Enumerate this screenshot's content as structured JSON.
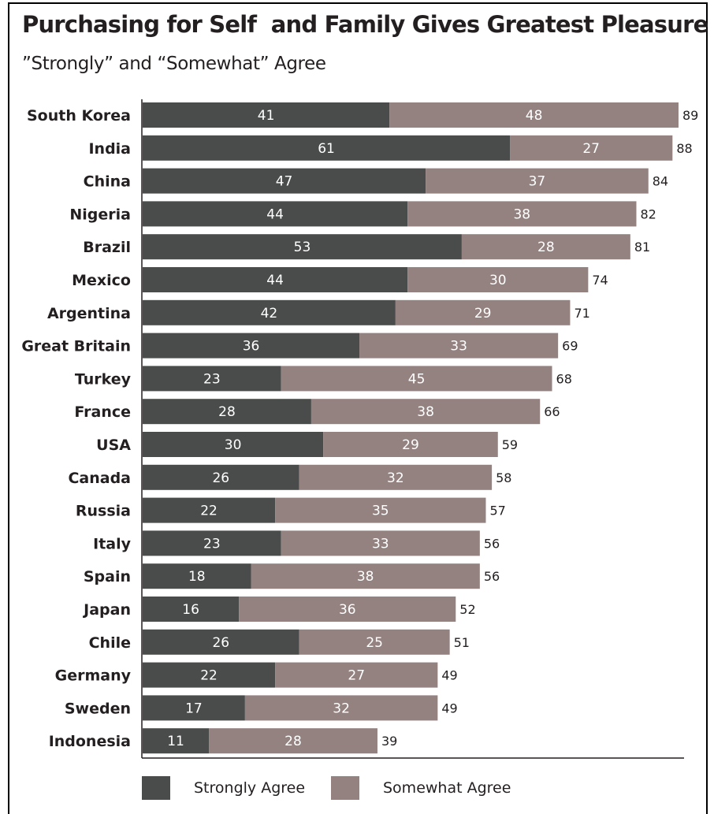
{
  "chart_data": {
    "type": "bar",
    "orientation": "horizontal",
    "stacked": true,
    "title": "Purchasing for Self  and Family Gives Greatest Pleasure",
    "subtitle": "”Strongly” and “Somewhat” Agree",
    "categories": [
      "South Korea",
      "India",
      "China",
      "Nigeria",
      "Brazil",
      "Mexico",
      "Argentina",
      "Great Britain",
      "Turkey",
      "France",
      "USA",
      "Canada",
      "Russia",
      "Italy",
      "Spain",
      "Japan",
      "Chile",
      "Germany",
      "Sweden",
      "Indonesia"
    ],
    "series": [
      {
        "name": "Strongly Agree",
        "color": "#4a4c4b",
        "values": [
          41,
          61,
          47,
          44,
          53,
          44,
          42,
          36,
          23,
          28,
          30,
          26,
          22,
          23,
          18,
          16,
          26,
          22,
          17,
          11
        ]
      },
      {
        "name": "Somewhat Agree",
        "color": "#948280",
        "values": [
          48,
          27,
          37,
          38,
          28,
          30,
          29,
          33,
          45,
          38,
          29,
          32,
          35,
          33,
          38,
          36,
          25,
          27,
          32,
          28
        ]
      }
    ],
    "totals": [
      89,
      88,
      84,
      82,
      81,
      74,
      71,
      69,
      68,
      66,
      59,
      58,
      57,
      56,
      56,
      52,
      51,
      49,
      49,
      39
    ],
    "xlim": [
      0,
      89
    ],
    "grid": false,
    "legend_position": "bottom"
  }
}
